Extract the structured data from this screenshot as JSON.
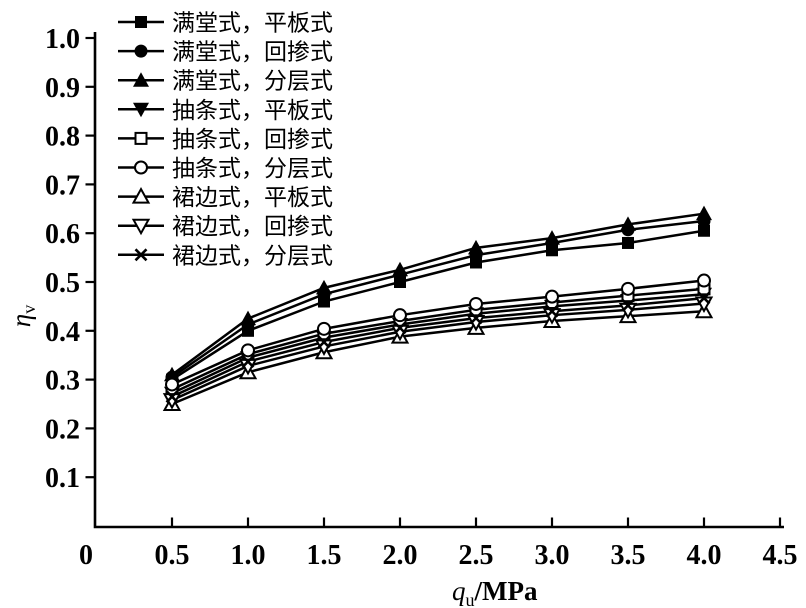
{
  "figure": {
    "background": "#ffffff",
    "stroke_color": "#000000"
  },
  "chart_data": {
    "type": "line",
    "title": "",
    "xlabel": "qu/MPa",
    "ylabel": "ηv",
    "x_title_parts": {
      "symbol": "q",
      "subscript": "u",
      "unit": "/MPa"
    },
    "y_title_parts": {
      "symbol": "η",
      "subscript": "v"
    },
    "xlim": [
      0,
      4.5
    ],
    "ylim": [
      0,
      1.0
    ],
    "grid": false,
    "legend_position": "top-left-inside",
    "x_ticks": {
      "values": [
        0,
        0.5,
        1.0,
        1.5,
        2.0,
        2.5,
        3.0,
        3.5,
        4.0,
        4.5
      ],
      "labels": [
        "0",
        "0.5",
        "1.0",
        "1.5",
        "2.0",
        "2.5",
        "3.0",
        "3.5",
        "4.0",
        "4.5"
      ]
    },
    "y_ticks": {
      "values": [
        0.1,
        0.2,
        0.3,
        0.4,
        0.5,
        0.6,
        0.7,
        0.8,
        0.9,
        1.0
      ],
      "labels": [
        "0.1",
        "0.2",
        "0.3",
        "0.4",
        "0.5",
        "0.6",
        "0.7",
        "0.8",
        "0.9",
        "1.0"
      ]
    },
    "x": [
      0.5,
      1.0,
      1.5,
      2.0,
      2.5,
      3.0,
      3.5,
      4.0
    ],
    "series": [
      {
        "name": "满堂式，平板式",
        "marker": "filled-square",
        "values": [
          0.3,
          0.4,
          0.46,
          0.5,
          0.54,
          0.565,
          0.58,
          0.605
        ]
      },
      {
        "name": "满堂式，回掺式",
        "marker": "filled-circle",
        "values": [
          0.305,
          0.413,
          0.475,
          0.515,
          0.555,
          0.58,
          0.607,
          0.625
        ]
      },
      {
        "name": "满堂式，分层式",
        "marker": "filled-triangle-up",
        "values": [
          0.31,
          0.425,
          0.488,
          0.525,
          0.57,
          0.59,
          0.618,
          0.64
        ]
      },
      {
        "name": "抽条式，平板式",
        "marker": "filled-triangle-down",
        "values": [
          0.272,
          0.345,
          0.386,
          0.413,
          0.435,
          0.45,
          0.462,
          0.475
        ]
      },
      {
        "name": "抽条式，回掺式",
        "marker": "open-square",
        "values": [
          0.28,
          0.352,
          0.394,
          0.42,
          0.443,
          0.458,
          0.472,
          0.486
        ]
      },
      {
        "name": "抽条式，分层式",
        "marker": "open-circle",
        "values": [
          0.29,
          0.36,
          0.404,
          0.432,
          0.455,
          0.47,
          0.486,
          0.503
        ]
      },
      {
        "name": "裙边式，平板式",
        "marker": "open-triangle-up",
        "values": [
          0.25,
          0.315,
          0.356,
          0.388,
          0.406,
          0.42,
          0.43,
          0.44
        ]
      },
      {
        "name": "裙边式，回掺式",
        "marker": "open-triangle-down",
        "values": [
          0.258,
          0.328,
          0.368,
          0.398,
          0.418,
          0.432,
          0.443,
          0.456
        ]
      },
      {
        "name": "裙边式，分层式",
        "marker": "x-cross",
        "values": [
          0.265,
          0.337,
          0.377,
          0.406,
          0.426,
          0.44,
          0.452,
          0.467
        ]
      }
    ]
  }
}
